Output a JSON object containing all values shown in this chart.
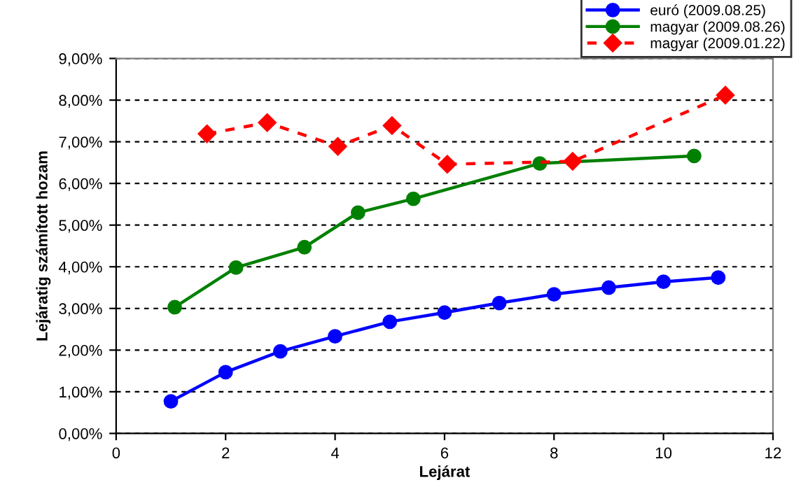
{
  "chart_data": {
    "type": "line",
    "xlabel": "Lejárat",
    "ylabel": "Lejáratig számított hozam",
    "xlim": [
      0,
      12
    ],
    "xticks": [
      0,
      2,
      4,
      6,
      8,
      10,
      12
    ],
    "ylim": [
      0,
      9
    ],
    "yticks": [
      {
        "value": 0,
        "label": "0,00%"
      },
      {
        "value": 1,
        "label": "1,00%"
      },
      {
        "value": 2,
        "label": "2,00%"
      },
      {
        "value": 3,
        "label": "3,00%"
      },
      {
        "value": 4,
        "label": "4,00%"
      },
      {
        "value": 5,
        "label": "5,00%"
      },
      {
        "value": 6,
        "label": "6,00%"
      },
      {
        "value": 7,
        "label": "7,00%"
      },
      {
        "value": 8,
        "label": "8,00%"
      },
      {
        "value": 9,
        "label": "9,00%"
      }
    ],
    "grid": "y",
    "legend": "top right",
    "series": [
      {
        "name": "euró (2009.08.25)",
        "color": "#0000ff",
        "marker": "circle",
        "line_style": "solid",
        "x": [
          1,
          2,
          3,
          4,
          5,
          6,
          7,
          8,
          9,
          10,
          11
        ],
        "values": [
          0.77,
          1.47,
          1.97,
          2.33,
          2.68,
          2.9,
          3.13,
          3.34,
          3.5,
          3.64,
          3.74
        ]
      },
      {
        "name": "magyar (2009.08.26)",
        "color": "#008000",
        "marker": "circle",
        "line_style": "solid",
        "x": [
          1.07,
          2.19,
          3.44,
          4.42,
          5.43,
          7.74,
          10.56
        ],
        "values": [
          3.03,
          3.98,
          4.47,
          5.3,
          5.63,
          6.48,
          6.66
        ]
      },
      {
        "name": "magyar (2009.01.22)",
        "color": "#ff0000",
        "marker": "diamond",
        "line_style": "dashed",
        "x": [
          1.66,
          2.76,
          4.05,
          5.04,
          6.05,
          8.34,
          11.13
        ],
        "values": [
          7.19,
          7.46,
          6.89,
          7.39,
          6.46,
          6.53,
          8.12
        ]
      }
    ]
  }
}
